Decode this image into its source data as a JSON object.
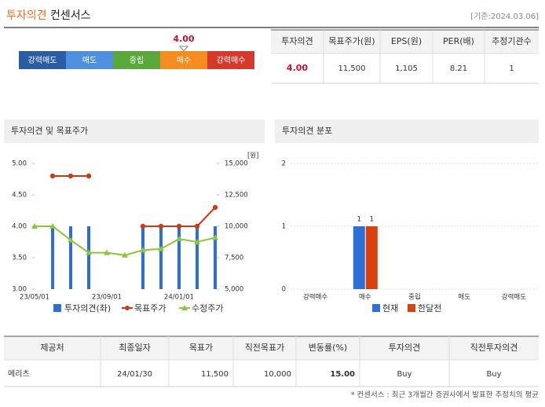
{
  "header": {
    "title_accent": "투자의견",
    "title": "컨센서스",
    "date": "[기준:2024.03.06]"
  },
  "opinion_bar": {
    "segments": [
      {
        "label": "강력매도",
        "color": "#2b5ca6"
      },
      {
        "label": "매도",
        "color": "#4f8fe0"
      },
      {
        "label": "중립",
        "color": "#5aa83c"
      },
      {
        "label": "매수",
        "color": "#f68b1f"
      },
      {
        "label": "강력매수",
        "color": "#d6392b"
      }
    ],
    "value": 4,
    "value_label": "4.00",
    "marker_color": "#c8102e"
  },
  "summary_table": {
    "headers": [
      "투자의견",
      "목표주가(원)",
      "EPS(원)",
      "PER(배)",
      "추정기관수"
    ],
    "row": [
      "4.00",
      "11,500",
      "1,105",
      "8.21",
      "1"
    ]
  },
  "chart_data": [
    {
      "type": "bar_line",
      "title": "투자의견 및 목표주가",
      "categories": [
        "23/05/01",
        null,
        null,
        null,
        "23/09/01",
        null,
        null,
        null,
        "24/01/01",
        null,
        null
      ],
      "series": [
        {
          "name": "투자의견(좌)",
          "type": "bar",
          "color": "#2e6fd6",
          "values": [
            null,
            4,
            4,
            4,
            null,
            null,
            4,
            4,
            4,
            4,
            4
          ]
        },
        {
          "name": "목표주가",
          "type": "line",
          "marker": "circle",
          "axis": "y2",
          "color": "#cc3a16",
          "values": [
            null,
            14000,
            14000,
            14000,
            null,
            null,
            10000,
            10000,
            10000,
            10000,
            11500
          ]
        },
        {
          "name": "수정주가",
          "type": "line",
          "marker": "triangle",
          "axis": "y2",
          "color": "#8cc63f",
          "values": [
            10000,
            10000,
            8900,
            7900,
            7900,
            7700,
            8100,
            8200,
            9000,
            8750,
            9100
          ]
        }
      ],
      "ylim": [
        3,
        5
      ],
      "yticks": [
        {
          "value": 3,
          "label": "3.00"
        },
        {
          "value": 3.5,
          "label": "3.50"
        },
        {
          "value": 4,
          "label": "4.00"
        },
        {
          "value": 4.5,
          "label": "4.50"
        },
        {
          "value": 5,
          "label": "5.00"
        }
      ],
      "y2lim": [
        5000,
        15000
      ],
      "y2ticks": [
        {
          "value": 5000,
          "label": "5,000"
        },
        {
          "value": 7500,
          "label": "7,500"
        },
        {
          "value": 10000,
          "label": "10,000"
        },
        {
          "value": 12500,
          "label": "12,500"
        },
        {
          "value": 15000,
          "label": "15,000"
        }
      ],
      "y2_label": "[원]"
    },
    {
      "type": "bar",
      "title": "투자의견 분포",
      "categories": [
        "강력매수",
        "매수",
        "중립",
        "매도",
        "강력매도"
      ],
      "series": [
        {
          "name": "현재",
          "color": "#2e6fd6",
          "values": [
            0,
            1,
            0,
            0,
            0
          ]
        },
        {
          "name": "한달전",
          "color": "#d9400e",
          "values": [
            0,
            1,
            0,
            0,
            0
          ]
        }
      ],
      "ylim": [
        0,
        2
      ],
      "yticks": [
        0,
        1,
        2
      ],
      "grid": true
    }
  ],
  "detail_table": {
    "headers": [
      "제공처",
      "최종일자",
      "목표가",
      "직전목표가",
      "변동률(%)",
      "투자의견",
      "직전투자의견"
    ],
    "row": [
      "메리츠",
      "24/01/30",
      "11,500",
      "10,000",
      "15.00",
      "Buy",
      "Buy"
    ]
  },
  "footnote": "* 컨센서스 : 최근 3개월간 증권사에서 발표한 추정치의 평균"
}
